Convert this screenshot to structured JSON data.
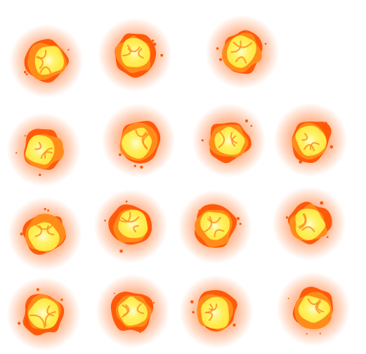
{
  "sprite_sheet": {
    "background": "#ffffff",
    "colors": {
      "glow_outer": "#ff6a1a",
      "glow_inner": "#ff9b2e",
      "rim": "#ff5a0a",
      "flame": "#ff8c1a",
      "core_bright": "#fff36a",
      "core_hot": "#ffe43a"
    },
    "rows": [
      {
        "frames": [
          {
            "id": 1
          },
          {
            "id": 2
          },
          {
            "id": 3
          }
        ]
      },
      {
        "frames": [
          {
            "id": 4
          },
          {
            "id": 5
          },
          {
            "id": 6
          },
          {
            "id": 7
          }
        ]
      },
      {
        "frames": [
          {
            "id": 8
          },
          {
            "id": 9
          },
          {
            "id": 10
          },
          {
            "id": 11
          }
        ]
      },
      {
        "frames": [
          {
            "id": 12
          },
          {
            "id": 13
          },
          {
            "id": 14
          },
          {
            "id": 15
          }
        ]
      }
    ],
    "icon": "fireball-sprite"
  }
}
